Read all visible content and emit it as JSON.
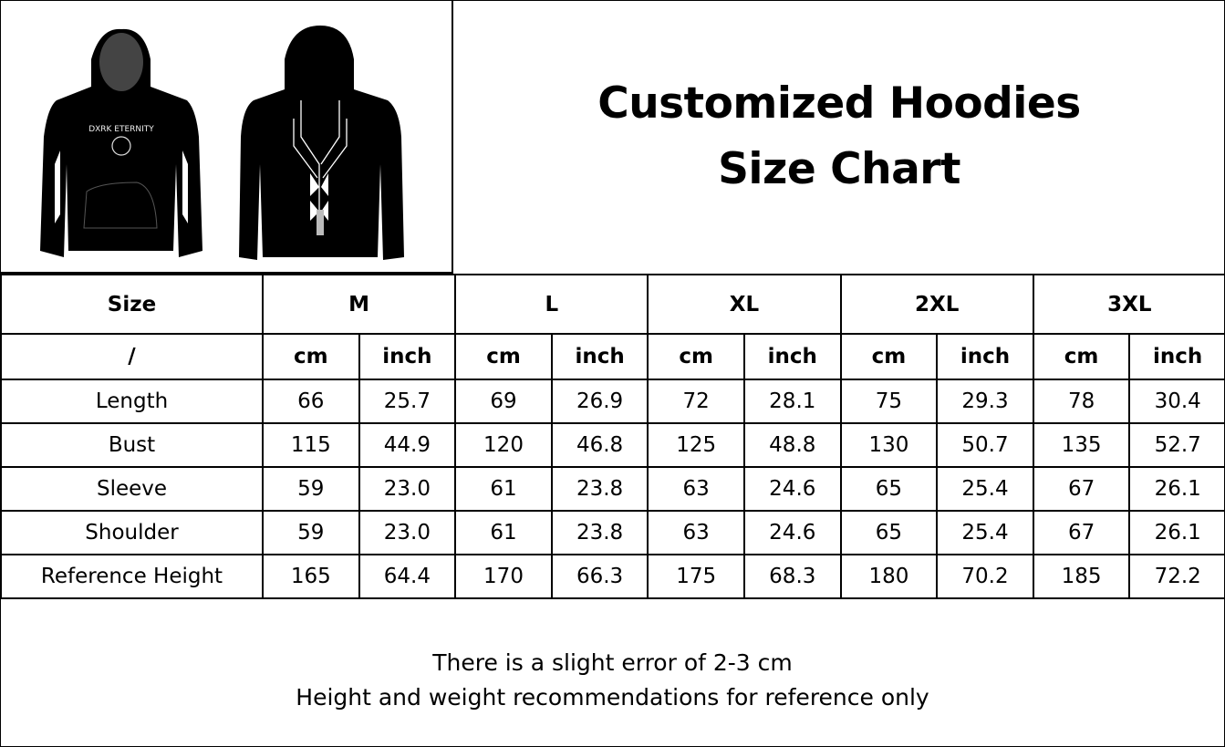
{
  "title": {
    "line1": "Customized Hoodies",
    "line2": "Size Chart"
  },
  "product_image": {
    "front_print_text": "DXRK ETERNITY",
    "garment_color": "#000000"
  },
  "table": {
    "header": {
      "label": "Size",
      "sizes": [
        "M",
        "L",
        "XL",
        "2XL",
        "3XL"
      ]
    },
    "units": {
      "label": "/",
      "cm": "cm",
      "inch": "inch"
    },
    "rows": [
      {
        "label": "Length",
        "values": [
          "66",
          "25.7",
          "69",
          "26.9",
          "72",
          "28.1",
          "75",
          "29.3",
          "78",
          "30.4"
        ]
      },
      {
        "label": "Bust",
        "values": [
          "115",
          "44.9",
          "120",
          "46.8",
          "125",
          "48.8",
          "130",
          "50.7",
          "135",
          "52.7"
        ]
      },
      {
        "label": "Sleeve",
        "values": [
          "59",
          "23.0",
          "61",
          "23.8",
          "63",
          "24.6",
          "65",
          "25.4",
          "67",
          "26.1"
        ]
      },
      {
        "label": "Shoulder",
        "values": [
          "59",
          "23.0",
          "61",
          "23.8",
          "63",
          "24.6",
          "65",
          "25.4",
          "67",
          "26.1"
        ]
      },
      {
        "label": "Reference Height",
        "values": [
          "165",
          "64.4",
          "170",
          "66.3",
          "175",
          "68.3",
          "180",
          "70.2",
          "185",
          "72.2"
        ]
      }
    ]
  },
  "footer": {
    "line1": "There is a slight error of 2-3 cm",
    "line2": "Height and weight recommendations for reference only"
  }
}
